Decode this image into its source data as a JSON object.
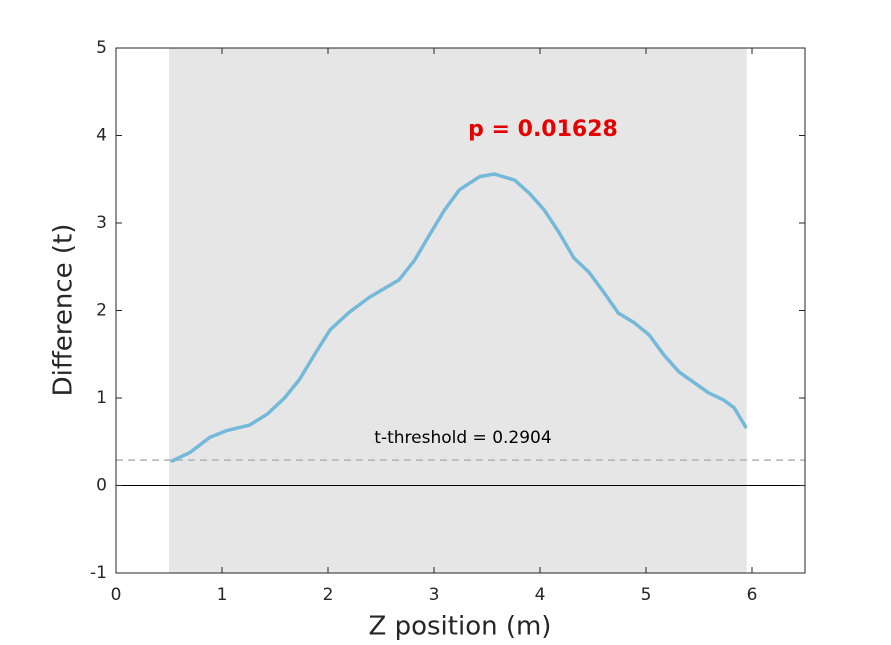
{
  "chart_data": {
    "type": "line",
    "xlabel": "Z position (m)",
    "ylabel": "Difference (t)",
    "xlim": [
      0,
      6.5
    ],
    "ylim": [
      -1,
      5
    ],
    "xticks": [
      0,
      1,
      2,
      3,
      4,
      5,
      6
    ],
    "yticks": [
      -1,
      0,
      1,
      2,
      3,
      4,
      5
    ],
    "shaded_region": [
      0.5,
      5.95
    ],
    "shade_color": "#e6e6e6",
    "threshold": 0.2904,
    "threshold_color": "#b3b3b3",
    "series": [
      {
        "color": "#74b9d9",
        "x": [
          0.53,
          0.7,
          0.885,
          1.05,
          1.26,
          1.43,
          1.59,
          1.73,
          1.87,
          2.02,
          2.2,
          2.39,
          2.53,
          2.67,
          2.82,
          2.96,
          3.1,
          3.24,
          3.43,
          3.57,
          3.76,
          3.9,
          4.04,
          4.18,
          4.32,
          4.46,
          4.6,
          4.74,
          4.89,
          5.03,
          5.17,
          5.31,
          5.45,
          5.59,
          5.73,
          5.83,
          5.94
        ],
        "values": [
          0.28,
          0.38,
          0.55,
          0.63,
          0.69,
          0.82,
          1.0,
          1.21,
          1.49,
          1.78,
          1.98,
          2.15,
          2.25,
          2.35,
          2.58,
          2.87,
          3.15,
          3.38,
          3.53,
          3.56,
          3.49,
          3.34,
          3.15,
          2.89,
          2.6,
          2.44,
          2.21,
          1.97,
          1.86,
          1.72,
          1.49,
          1.3,
          1.18,
          1.06,
          0.98,
          0.89,
          0.67
        ]
      }
    ],
    "annotations": [
      {
        "text": "p = 0.01628",
        "color": "#e60000"
      },
      {
        "text": "t-threshold = 0.2904",
        "color": "#000000"
      }
    ]
  }
}
